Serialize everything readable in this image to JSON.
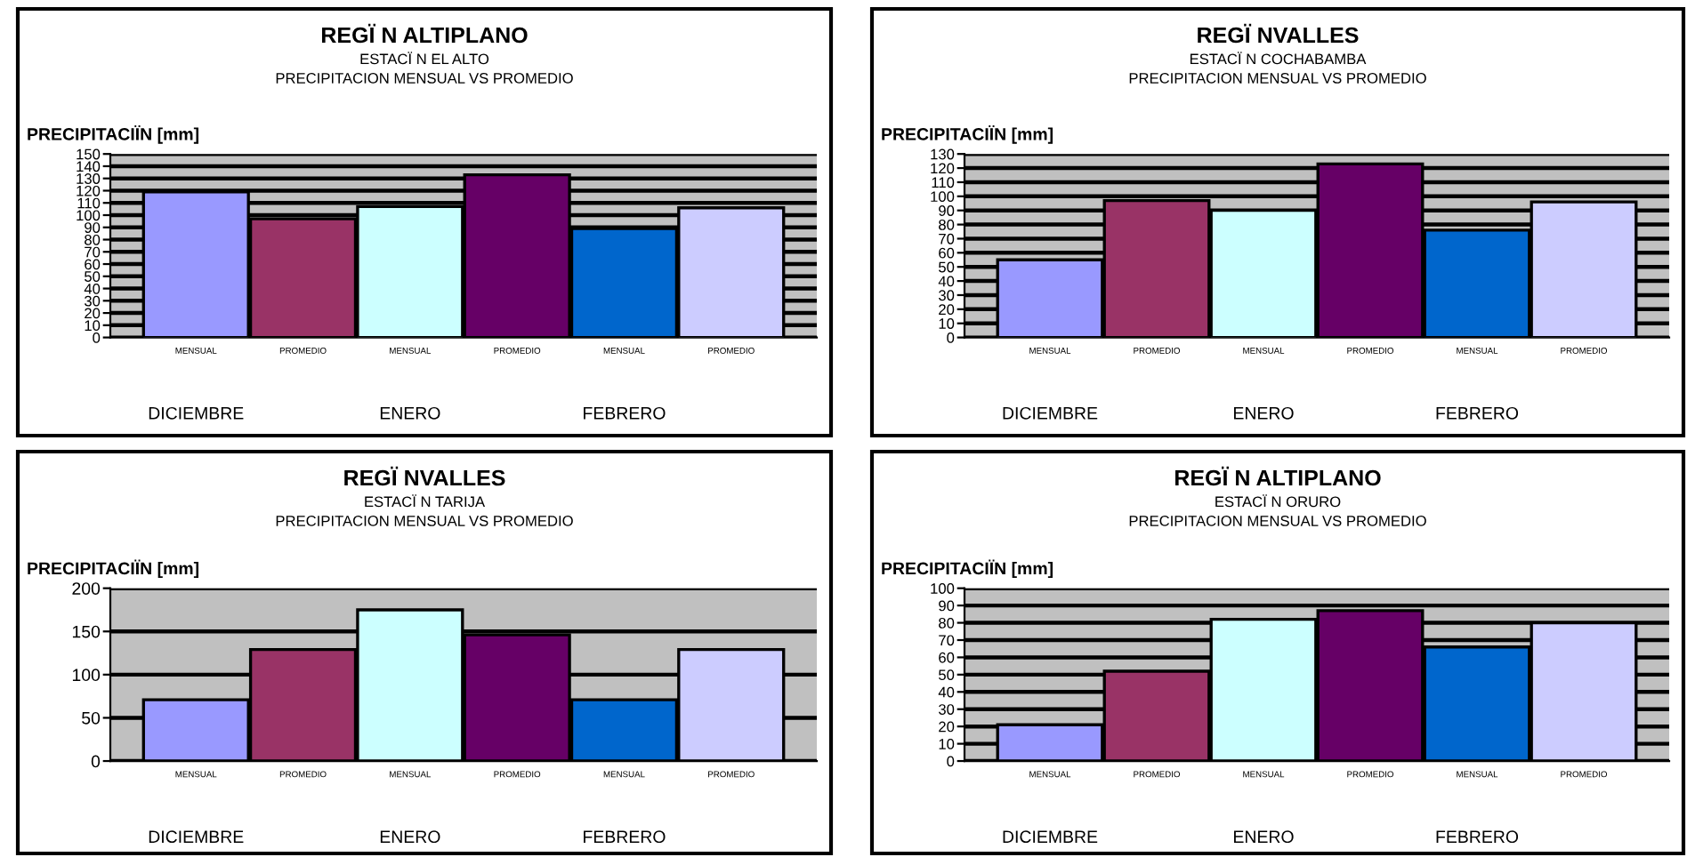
{
  "chart_data": [
    {
      "type": "bar",
      "title": "REGÏ N ALTIPLANO",
      "subtitle": "ESTACÏ N EL ALTO\nPRECIPITACION MENSUAL VS PROMEDIO",
      "ylabel": "PRECIPITACIÏN [mm]",
      "categories": [
        "MENSUAL",
        "PROMEDIO",
        "MENSUAL",
        "PROMEDIO",
        "MENSUAL",
        "PROMEDIO"
      ],
      "values": [
        119,
        97,
        107,
        133,
        89,
        106
      ],
      "colors": [
        "#9999ff",
        "#993366",
        "#ccffff",
        "#660066",
        "#0066cc",
        "#ccccff"
      ],
      "ylim": [
        0,
        150
      ],
      "yticks": [
        0,
        10,
        20,
        30,
        40,
        50,
        60,
        70,
        80,
        90,
        100,
        110,
        120,
        130,
        140,
        150
      ],
      "grid": "y",
      "annotations": [
        "DICIEMBRE",
        "ENERO",
        "FEBRERO"
      ]
    },
    {
      "type": "bar",
      "title": "REGÏ NVALLES",
      "subtitle": "ESTACÏ N COCHABAMBA\nPRECIPITACION MENSUAL VS PROMEDIO",
      "ylabel": "PRECIPITACIÏN [mm]",
      "categories": [
        "MENSUAL",
        "PROMEDIO",
        "MENSUAL",
        "PROMEDIO",
        "MENSUAL",
        "PROMEDIO"
      ],
      "values": [
        55,
        97,
        90,
        123,
        76,
        96
      ],
      "colors": [
        "#9999ff",
        "#993366",
        "#ccffff",
        "#660066",
        "#0066cc",
        "#ccccff"
      ],
      "ylim": [
        0,
        130
      ],
      "yticks": [
        0,
        10,
        20,
        30,
        40,
        50,
        60,
        70,
        80,
        90,
        100,
        110,
        120,
        130
      ],
      "grid": "y",
      "annotations": [
        "DICIEMBRE",
        "ENERO",
        "FEBRERO"
      ]
    },
    {
      "type": "bar",
      "title": "REGÏ NVALLES",
      "subtitle": "ESTACÏ N TARIJA\nPRECIPITACION MENSUAL VS PROMEDIO",
      "ylabel": "PRECIPITACIÏN [mm]",
      "categories": [
        "MENSUAL",
        "PROMEDIO",
        "MENSUAL",
        "PROMEDIO",
        "MENSUAL",
        "PROMEDIO"
      ],
      "values": [
        71,
        129,
        175,
        146,
        71,
        129
      ],
      "colors": [
        "#9999ff",
        "#993366",
        "#ccffff",
        "#660066",
        "#0066cc",
        "#ccccff"
      ],
      "ylim": [
        0,
        200
      ],
      "yticks": [
        0,
        50,
        100,
        150,
        200
      ],
      "grid": "y",
      "annotations": [
        "DICIEMBRE",
        "ENERO",
        "FEBRERO"
      ]
    },
    {
      "type": "bar",
      "title": "REGÏ N ALTIPLANO",
      "subtitle": "ESTACÏ N ORURO\nPRECIPITACION MENSUAL VS PROMEDIO",
      "ylabel": "PRECIPITACIÏN [mm]",
      "categories": [
        "MENSUAL",
        "PROMEDIO",
        "MENSUAL",
        "PROMEDIO",
        "MENSUAL",
        "PROMEDIO"
      ],
      "values": [
        21,
        52,
        82,
        87,
        66,
        80
      ],
      "colors": [
        "#9999ff",
        "#993366",
        "#ccffff",
        "#660066",
        "#0066cc",
        "#ccccff"
      ],
      "ylim": [
        0,
        100
      ],
      "yticks": [
        0,
        10,
        20,
        30,
        40,
        50,
        60,
        70,
        80,
        90,
        100
      ],
      "grid": "y",
      "annotations": [
        "DICIEMBRE",
        "ENERO",
        "FEBRERO"
      ]
    }
  ]
}
